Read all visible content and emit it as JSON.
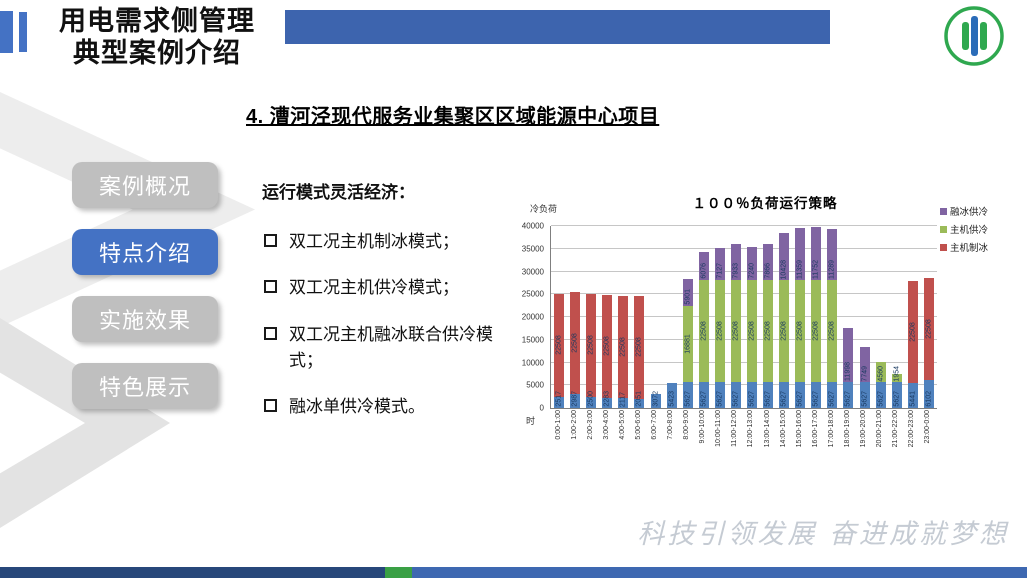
{
  "header": {
    "title_line1": "用电需求侧管理",
    "title_line2": "典型案例介绍"
  },
  "subtitle": "4. 漕河泾现代服务业集聚区区域能源中心项目",
  "sidebar": {
    "items": [
      {
        "label": "案例概况",
        "active": false
      },
      {
        "label": "特点介绍",
        "active": true
      },
      {
        "label": "实施效果",
        "active": false
      },
      {
        "label": "特色展示",
        "active": false
      }
    ],
    "active_color": "#4472C4",
    "inactive_color": "#BFBFBF"
  },
  "content": {
    "heading": "运行模式灵活经济：",
    "bullets": [
      "双工况主机制冰模式；",
      "双工况主机供冷模式；",
      "双工况主机融冰联合供冷模式；",
      "融冰单供冷模式。"
    ]
  },
  "footer": {
    "slogan": "科技引领发展  奋进成就梦想"
  },
  "chart_data": {
    "type": "bar",
    "stacked": true,
    "title": "１００％负荷运行策略",
    "ylabel": "冷负荷",
    "xlabel": "时",
    "ylim": [
      0,
      40000
    ],
    "ytick_step": 5000,
    "grid": true,
    "legend_position": "top-right",
    "legend": [
      {
        "label": "融冰供冷",
        "color": "#8064A2"
      },
      {
        "label": "主机供冷",
        "color": "#9BBB59"
      },
      {
        "label": "主机制冰",
        "color": "#C0504D"
      }
    ],
    "categories": [
      "0:00-1:00",
      "1:00-2:00",
      "2:00-3:00",
      "3:00-4:00",
      "4:00-5:00",
      "5:00-6:00",
      "6:00-7:00",
      "7:00-8:00",
      "8:00-9:00",
      "9:00-10:00",
      "10:00-11:00",
      "11:00-12:00",
      "12:00-13:00",
      "13:00-14:00",
      "14:00-15:00",
      "15:00-16:00",
      "16:00-17:00",
      "17:00-18:00",
      "18:00-19:00",
      "19:00-20:00",
      "20:00-21:00",
      "21:00-22:00",
      "22:00-23:00",
      "23:00-0:00"
    ],
    "series": [
      {
        "id": "base-blue",
        "label_in_legend": false,
        "color": "#4F81BD",
        "values": [
          2517,
          2987,
          2500,
          2283,
          2117,
          2051,
          3072,
          5423,
          5627,
          5627,
          5627,
          5627,
          5627,
          5627,
          5627,
          5627,
          5627,
          5627,
          5627,
          5627,
          5627,
          5627,
          5441,
          6102
        ]
      },
      {
        "id": "zhuji-gongleng",
        "name": "主机供冷",
        "color": "#9BBB59",
        "values": [
          0,
          0,
          0,
          0,
          0,
          0,
          0,
          0,
          16881,
          22508,
          22508,
          22508,
          22508,
          22508,
          22508,
          22508,
          22508,
          22508,
          0,
          0,
          4560,
          1954,
          0,
          0
        ]
      },
      {
        "id": "rongbing-gongleng",
        "name": "融冰供冷",
        "color": "#8064A2",
        "values": [
          0,
          0,
          0,
          0,
          0,
          0,
          0,
          0,
          5901,
          6076,
          7127,
          7933,
          7240,
          7866,
          10428,
          11359,
          11752,
          11289,
          11998,
          7749,
          0,
          0,
          0,
          0
        ]
      },
      {
        "id": "zhuji-zhibing",
        "name": "主机制冰",
        "color": "#C0504D",
        "values": [
          22508,
          22508,
          22508,
          22508,
          22508,
          22508,
          0,
          0,
          0,
          0,
          0,
          0,
          0,
          0,
          0,
          0,
          0,
          0,
          0,
          0,
          0,
          0,
          22508,
          22508
        ]
      }
    ],
    "bar_label_color": "#17375E"
  }
}
